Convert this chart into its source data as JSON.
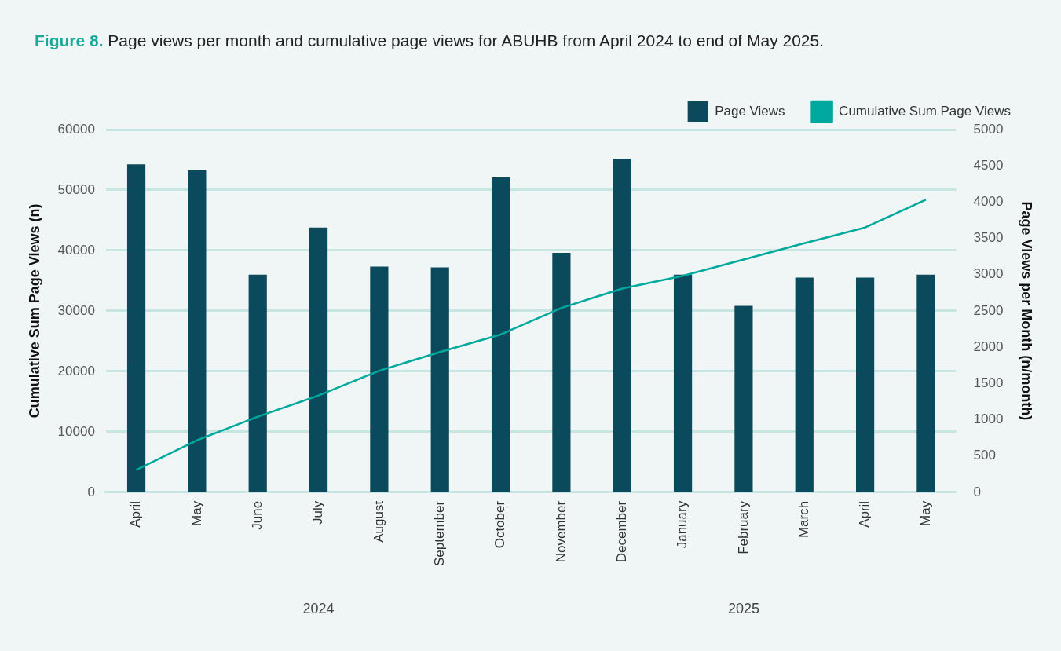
{
  "chart_data": {
    "type": "bar",
    "title": "Figure 8. Page views per month and cumulative page views for ABUHB from April 2024 to end of May 2025.",
    "ylabel": "Cumulative Sum Page Views (n)",
    "y2label": "Page Views per Month (n/month)",
    "categories": [
      "April",
      "May",
      "June",
      "July",
      "August",
      "September",
      "October",
      "November",
      "December",
      "January",
      "February",
      "March",
      "April",
      "May"
    ],
    "series": [
      {
        "name": "Page Views",
        "axis": "y2",
        "color": "#0a4a5c",
        "values": [
          4520,
          4440,
          3000,
          3650,
          3110,
          3100,
          4340,
          3300,
          4600,
          3000,
          2570,
          2960,
          2960,
          3000
        ]
      },
      {
        "name": "Cumulative Sum Page Views",
        "type": "line",
        "color": "#00a99d",
        "values": [
          3700,
          8600,
          12500,
          16000,
          20100,
          23200,
          26100,
          30500,
          33700,
          35800,
          38500,
          41200,
          43800,
          48400
        ]
      }
    ],
    "ylim": [
      0,
      60000
    ],
    "yticks": [
      0,
      10000,
      20000,
      30000,
      40000,
      50000,
      60000
    ],
    "y2lim": [
      0,
      5000
    ],
    "y2ticks": [
      0,
      500,
      1000,
      1500,
      2000,
      2500,
      3000,
      3500,
      4000,
      4500,
      5000
    ],
    "annotations": [
      "2024",
      "2025"
    ],
    "grid": "y",
    "legend": "top right",
    "marker": "none"
  }
}
